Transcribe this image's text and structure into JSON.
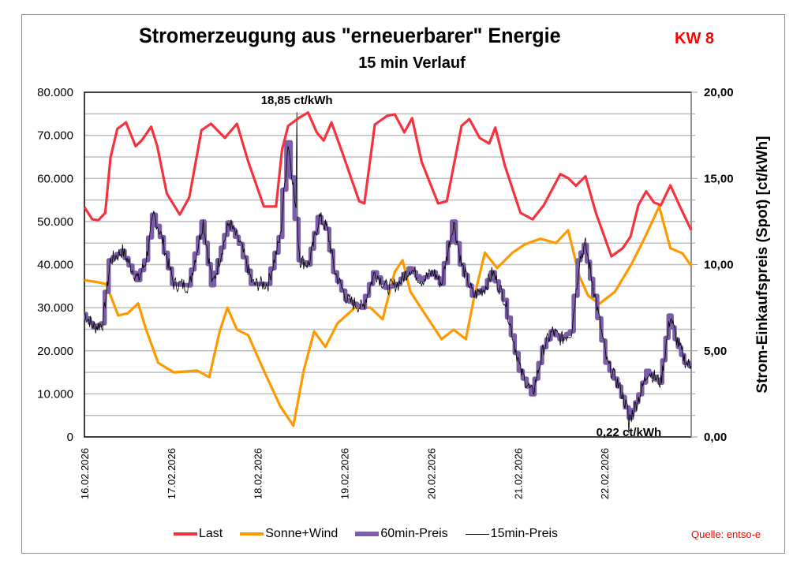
{
  "chart_data": {
    "type": "line",
    "title": "Stromerzeugung aus \"erneuerbarer\" Energie",
    "title_badge": "KW 8",
    "subtitle": "15 min Verlauf",
    "xlabel": "",
    "ylabel_left": "",
    "ylabel_right": "Strom-Einkaufspreis (Spot)  [ct/kWh]",
    "ylim_left": [
      0,
      80000
    ],
    "ylim_right": [
      0,
      20
    ],
    "xlim_days": [
      0,
      7
    ],
    "grid": true,
    "legend_position": "bottom",
    "y_ticks_left": [
      "0",
      "10.000",
      "20.000",
      "30.000",
      "40.000",
      "50.000",
      "60.000",
      "70.000",
      "80.000"
    ],
    "y_ticks_right": [
      "0,00",
      "5,00",
      "10,00",
      "15,00",
      "20,00"
    ],
    "x_ticks": [
      "16.02.2026",
      "17.02.2026",
      "18.02.2026",
      "19.02.2026",
      "20.02.2026",
      "21.02.2026",
      "22.02.2026"
    ],
    "annotations": [
      {
        "text": "18,85 ct/kWh",
        "day": 2.45,
        "price": 18.85,
        "kind": "max"
      },
      {
        "text": "0,22 ct/kWh",
        "day": 6.28,
        "price": 0.22,
        "kind": "min"
      }
    ],
    "series": [
      {
        "name": "Last",
        "axis": "left",
        "color": "#f4333f",
        "points": [
          [
            0.0,
            53300
          ],
          [
            0.09,
            50500
          ],
          [
            0.16,
            50300
          ],
          [
            0.24,
            52000
          ],
          [
            0.3,
            64800
          ],
          [
            0.38,
            71500
          ],
          [
            0.48,
            73000
          ],
          [
            0.59,
            67500
          ],
          [
            0.66,
            68800
          ],
          [
            0.77,
            72000
          ],
          [
            0.84,
            67500
          ],
          [
            0.95,
            56500
          ],
          [
            1.1,
            51600
          ],
          [
            1.21,
            55600
          ],
          [
            1.35,
            71200
          ],
          [
            1.46,
            72700
          ],
          [
            1.62,
            69400
          ],
          [
            1.76,
            72700
          ],
          [
            1.89,
            63900
          ],
          [
            2.07,
            53500
          ],
          [
            2.21,
            53500
          ],
          [
            2.28,
            66700
          ],
          [
            2.35,
            72200
          ],
          [
            2.47,
            74000
          ],
          [
            2.58,
            75300
          ],
          [
            2.68,
            70700
          ],
          [
            2.76,
            68800
          ],
          [
            2.85,
            73000
          ],
          [
            2.98,
            65700
          ],
          [
            3.17,
            54700
          ],
          [
            3.23,
            54200
          ],
          [
            3.35,
            72500
          ],
          [
            3.49,
            74500
          ],
          [
            3.58,
            74900
          ],
          [
            3.69,
            70700
          ],
          [
            3.78,
            74000
          ],
          [
            3.89,
            63900
          ],
          [
            4.08,
            54200
          ],
          [
            4.18,
            54700
          ],
          [
            4.35,
            72200
          ],
          [
            4.44,
            73800
          ],
          [
            4.56,
            69400
          ],
          [
            4.67,
            68100
          ],
          [
            4.74,
            71800
          ],
          [
            4.85,
            63000
          ],
          [
            5.03,
            52000
          ],
          [
            5.17,
            50500
          ],
          [
            5.3,
            53800
          ],
          [
            5.49,
            61000
          ],
          [
            5.58,
            60100
          ],
          [
            5.67,
            58300
          ],
          [
            5.78,
            60500
          ],
          [
            5.9,
            52000
          ],
          [
            6.08,
            41900
          ],
          [
            6.21,
            43800
          ],
          [
            6.3,
            46500
          ],
          [
            6.39,
            53800
          ],
          [
            6.48,
            57000
          ],
          [
            6.57,
            54400
          ],
          [
            6.65,
            53800
          ],
          [
            6.76,
            58400
          ],
          [
            6.87,
            53500
          ],
          [
            7.0,
            48000
          ]
        ]
      },
      {
        "name": "Sonne+Wind",
        "axis": "left",
        "color": "#ff9900",
        "points": [
          [
            0.0,
            36400
          ],
          [
            0.16,
            35900
          ],
          [
            0.25,
            35500
          ],
          [
            0.39,
            28200
          ],
          [
            0.5,
            28700
          ],
          [
            0.62,
            31000
          ],
          [
            0.71,
            25000
          ],
          [
            0.85,
            17200
          ],
          [
            1.03,
            15000
          ],
          [
            1.3,
            15400
          ],
          [
            1.44,
            13900
          ],
          [
            1.56,
            24500
          ],
          [
            1.65,
            30000
          ],
          [
            1.76,
            24900
          ],
          [
            1.89,
            23600
          ],
          [
            2.07,
            15400
          ],
          [
            2.26,
            7100
          ],
          [
            2.41,
            2600
          ],
          [
            2.53,
            15400
          ],
          [
            2.65,
            24500
          ],
          [
            2.78,
            20900
          ],
          [
            2.92,
            26400
          ],
          [
            3.12,
            30000
          ],
          [
            3.3,
            30000
          ],
          [
            3.44,
            27300
          ],
          [
            3.58,
            38300
          ],
          [
            3.67,
            41000
          ],
          [
            3.76,
            33700
          ],
          [
            3.94,
            28200
          ],
          [
            4.12,
            22700
          ],
          [
            4.26,
            24900
          ],
          [
            4.4,
            22700
          ],
          [
            4.49,
            31900
          ],
          [
            4.62,
            42800
          ],
          [
            4.76,
            39200
          ],
          [
            4.94,
            42800
          ],
          [
            5.08,
            44700
          ],
          [
            5.26,
            46000
          ],
          [
            5.44,
            45000
          ],
          [
            5.58,
            48000
          ],
          [
            5.71,
            37300
          ],
          [
            5.81,
            32800
          ],
          [
            5.94,
            30900
          ],
          [
            6.12,
            33700
          ],
          [
            6.31,
            40100
          ],
          [
            6.47,
            46500
          ],
          [
            6.63,
            53500
          ],
          [
            6.76,
            43800
          ],
          [
            6.9,
            42600
          ],
          [
            7.0,
            39700
          ]
        ]
      },
      {
        "name": "60min-Preis",
        "axis": "right",
        "color": "#7b5ea7",
        "points": [
          [
            0.0,
            7.14
          ],
          [
            0.12,
            6.36
          ],
          [
            0.21,
            6.59
          ],
          [
            0.3,
            10.25
          ],
          [
            0.44,
            10.8
          ],
          [
            0.62,
            9.1
          ],
          [
            0.71,
            10.25
          ],
          [
            0.8,
            12.9
          ],
          [
            0.89,
            11.6
          ],
          [
            1.03,
            8.88
          ],
          [
            1.21,
            8.79
          ],
          [
            1.37,
            12.5
          ],
          [
            1.48,
            8.8
          ],
          [
            1.67,
            12.45
          ],
          [
            1.8,
            11.2
          ],
          [
            1.94,
            8.88
          ],
          [
            2.12,
            8.88
          ],
          [
            2.26,
            11.6
          ],
          [
            2.35,
            17.1
          ],
          [
            2.4,
            15.06
          ],
          [
            2.49,
            10.25
          ],
          [
            2.59,
            10.0
          ],
          [
            2.71,
            12.77
          ],
          [
            2.8,
            12.08
          ],
          [
            2.89,
            9.56
          ],
          [
            3.03,
            7.96
          ],
          [
            3.21,
            7.5
          ],
          [
            3.35,
            9.56
          ],
          [
            3.49,
            8.65
          ],
          [
            3.62,
            8.88
          ],
          [
            3.76,
            9.79
          ],
          [
            3.89,
            9.1
          ],
          [
            4.03,
            9.56
          ],
          [
            4.12,
            8.88
          ],
          [
            4.26,
            12.5
          ],
          [
            4.35,
            10.0
          ],
          [
            4.49,
            8.19
          ],
          [
            4.62,
            8.65
          ],
          [
            4.71,
            9.56
          ],
          [
            4.85,
            7.96
          ],
          [
            5.03,
            3.84
          ],
          [
            5.17,
            2.47
          ],
          [
            5.3,
            5.2
          ],
          [
            5.4,
            6.13
          ],
          [
            5.5,
            5.67
          ],
          [
            5.62,
            6.13
          ],
          [
            5.71,
            10.25
          ],
          [
            5.78,
            11.16
          ],
          [
            5.89,
            8.19
          ],
          [
            6.03,
            4.3
          ],
          [
            6.17,
            2.93
          ],
          [
            6.3,
            1.1
          ],
          [
            6.41,
            2.47
          ],
          [
            6.5,
            3.84
          ],
          [
            6.65,
            3.15
          ],
          [
            6.76,
            7.05
          ],
          [
            6.83,
            5.67
          ],
          [
            6.94,
            4.3
          ],
          [
            7.0,
            4.1
          ]
        ]
      },
      {
        "name": "15min-Preis",
        "axis": "right",
        "color": "#000000",
        "derived_from": "60min-Preis",
        "note": "quarter-hour prices fluctuating around hourly values; extremes 18,85 and 0,22 ct/kWh"
      }
    ]
  },
  "legend": {
    "items": [
      {
        "label": "Last",
        "color": "#f4333f"
      },
      {
        "label": "Sonne+Wind",
        "color": "#ff9900"
      },
      {
        "label": "60min-Preis",
        "color": "#7b5ea7"
      },
      {
        "label": "15min-Preis",
        "color": "#000000"
      }
    ]
  },
  "source": "Quelle: entso-e"
}
